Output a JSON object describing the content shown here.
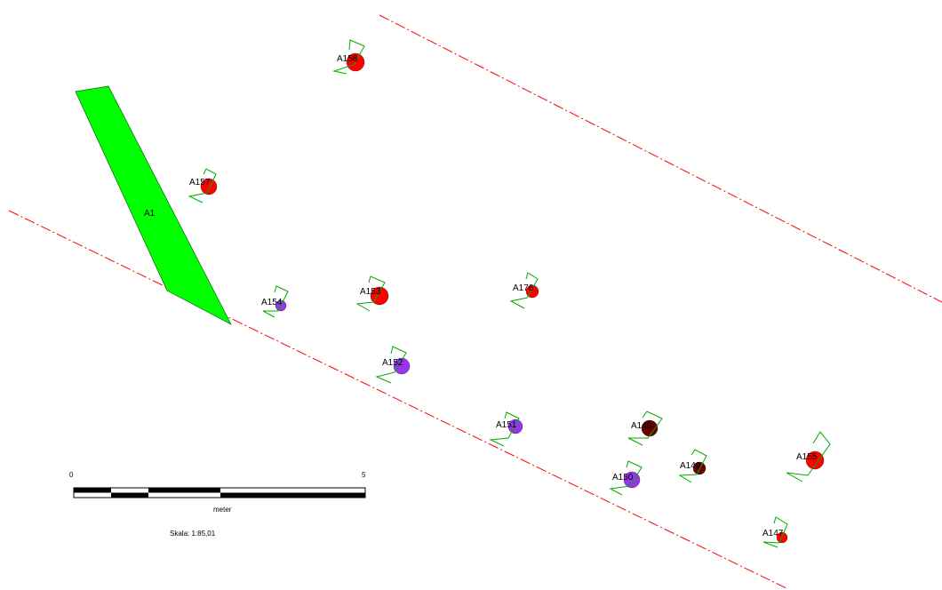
{
  "map": {
    "area": {
      "label": "A1",
      "color": "#00ff00"
    },
    "boundary_color": "#ff0000",
    "bracket_color": "#00aa00",
    "features": [
      {
        "id": "A158",
        "label": "A158",
        "color": "#ff0000"
      },
      {
        "id": "A157",
        "label": "A157",
        "color": "#ff0000"
      },
      {
        "id": "A154",
        "label": "A154",
        "color": "#9933ee"
      },
      {
        "id": "A153",
        "label": "A153",
        "color": "#ff0000"
      },
      {
        "id": "A176",
        "label": "A176",
        "color": "#ff0000"
      },
      {
        "id": "A152",
        "label": "A152",
        "color": "#9933ee"
      },
      {
        "id": "A151",
        "label": "A151",
        "color": "#9933ee"
      },
      {
        "id": "A148",
        "label": "A148",
        "color": "#6b0000"
      },
      {
        "id": "A149",
        "label": "A149",
        "color": "#6b0000"
      },
      {
        "id": "A150",
        "label": "A150",
        "color": "#9933ee"
      },
      {
        "id": "A155",
        "label": "A155",
        "color": "#ff0000"
      },
      {
        "id": "A147",
        "label": "A147",
        "color": "#ff0000"
      }
    ]
  },
  "scale_bar": {
    "start_label": "0",
    "end_label": "5",
    "unit": "meter",
    "scale_text": "Skala: 1:85,01"
  }
}
